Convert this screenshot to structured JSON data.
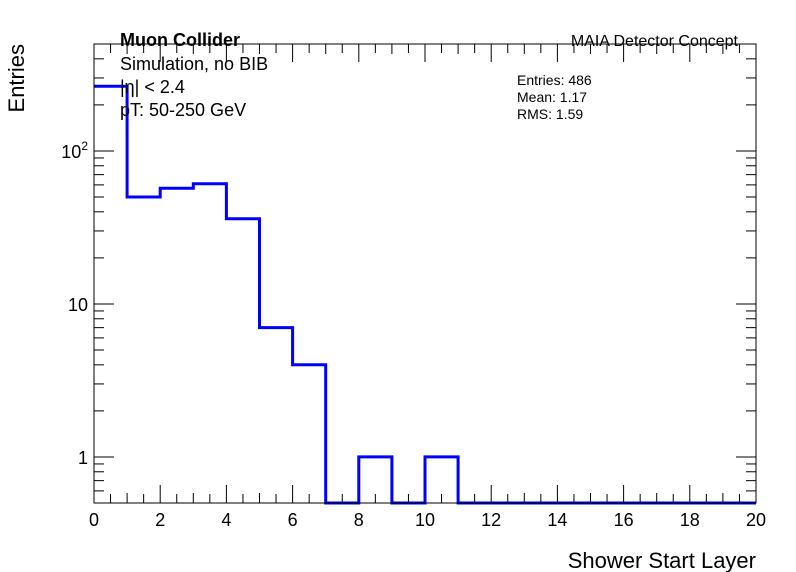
{
  "chart_data": {
    "type": "histogram",
    "xlabel": "Shower Start Layer",
    "ylabel": "Entries",
    "xlim": [
      0,
      20
    ],
    "ylim": [
      0.5,
      500
    ],
    "yscale": "log",
    "grid": false,
    "x_ticks": [
      "0",
      "2",
      "4",
      "6",
      "8",
      "10",
      "12",
      "14",
      "16",
      "18",
      "20"
    ],
    "y_ticks": [
      {
        "value": 1,
        "label": "1",
        "sup": ""
      },
      {
        "value": 10,
        "label": "10",
        "sup": ""
      },
      {
        "value": 100,
        "label": "10",
        "sup": "2"
      }
    ],
    "bin_edges": [
      0,
      1,
      2,
      3,
      4,
      5,
      6,
      7,
      8,
      9,
      10,
      11,
      12,
      13,
      14,
      15,
      16,
      17,
      18,
      19,
      20
    ],
    "values": [
      265,
      50,
      57,
      61,
      36,
      7,
      4,
      0,
      1,
      0,
      1,
      0,
      0,
      0,
      0,
      0,
      0,
      0,
      0,
      0
    ],
    "line_color": "#0000ff",
    "annotations": {
      "title_left": "Muon Collider",
      "line1": "Simulation, no BIB",
      "line2": "|η| < 2.4",
      "line3": "pT: 50-250 GeV",
      "title_right": "MAIA Detector Concept"
    },
    "stats": {
      "entries": "Entries: 486",
      "mean": "Mean: 1.17",
      "rms": "RMS: 1.59"
    }
  }
}
